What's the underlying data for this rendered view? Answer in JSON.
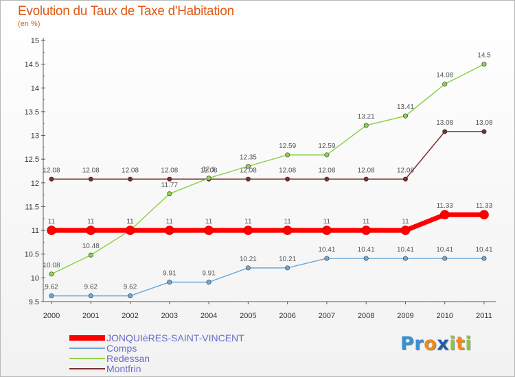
{
  "logo": {
    "chars": [
      "P",
      "r",
      "o",
      "x",
      "i",
      "t",
      "i"
    ],
    "colors": [
      "#3b8fd1",
      "#3b8fd1",
      "#f08a1c",
      "#1d5fb0",
      "#8cc63f",
      "#f08a1c",
      "#8cc63f"
    ]
  },
  "chart_data": {
    "type": "line",
    "title": "Evolution du Taux de Taxe d'Habitation",
    "ylabel": "(en %)",
    "xlabel": "",
    "ylim": [
      9.5,
      15
    ],
    "yticks": [
      "9.5",
      "10",
      "10.5",
      "11",
      "11.5",
      "12",
      "12.5",
      "13",
      "13.5",
      "14",
      "14.5",
      "15"
    ],
    "x": [
      "2000",
      "2001",
      "2002",
      "2003",
      "2004",
      "2005",
      "2006",
      "2007",
      "2008",
      "2009",
      "2010",
      "2011"
    ],
    "legend_position": "bottom-left",
    "series": [
      {
        "name": "Montfrin",
        "color": "#7a2e2e",
        "width": 1.5,
        "values": [
          12.08,
          12.08,
          12.08,
          12.08,
          12.08,
          12.08,
          12.08,
          12.08,
          12.08,
          12.08,
          13.08,
          13.08
        ],
        "labels": [
          "12.08",
          "12.08",
          "12.08",
          "12.08",
          "12.08",
          "12.08",
          "12.08",
          "12.08",
          "12.08",
          "12.08",
          "13.08",
          "13.08"
        ]
      },
      {
        "name": "Redessan",
        "color": "#8fd14f",
        "width": 1.5,
        "values": [
          10.08,
          10.48,
          11,
          11.77,
          12.1,
          12.35,
          12.59,
          12.59,
          13.21,
          13.41,
          14.08,
          14.5
        ],
        "labels": [
          "10.08",
          "10.48",
          "11",
          "11.77",
          "12.1",
          "12.35",
          "12.59",
          "12.59",
          "13.21",
          "13.41",
          "14.08",
          "14.5"
        ]
      },
      {
        "name": "Comps",
        "color": "#6fa8d6",
        "width": 1.5,
        "values": [
          9.62,
          9.62,
          9.62,
          9.91,
          9.91,
          10.21,
          10.21,
          10.41,
          10.41,
          10.41,
          10.41,
          10.41
        ],
        "labels": [
          "9.62",
          "9.62",
          "9.62",
          "9.91",
          "9.91",
          "10.21",
          "10.21",
          "10.41",
          "10.41",
          "10.41",
          "10.41",
          "10.41"
        ]
      },
      {
        "name": "JONQUIèRES-SAINT-VINCENT",
        "color": "#ff0000",
        "width": 7,
        "values": [
          11,
          11,
          11,
          11,
          11,
          11,
          11,
          11,
          11,
          11,
          11.33,
          11.33
        ],
        "labels": [
          "11",
          "11",
          "11",
          "11",
          "11",
          "11",
          "11",
          "11",
          "11",
          "11",
          "11.33",
          "11.33"
        ]
      }
    ],
    "legend_order": [
      "JONQUIèRES-SAINT-VINCENT",
      "Comps",
      "Redessan",
      "Montfrin"
    ]
  }
}
